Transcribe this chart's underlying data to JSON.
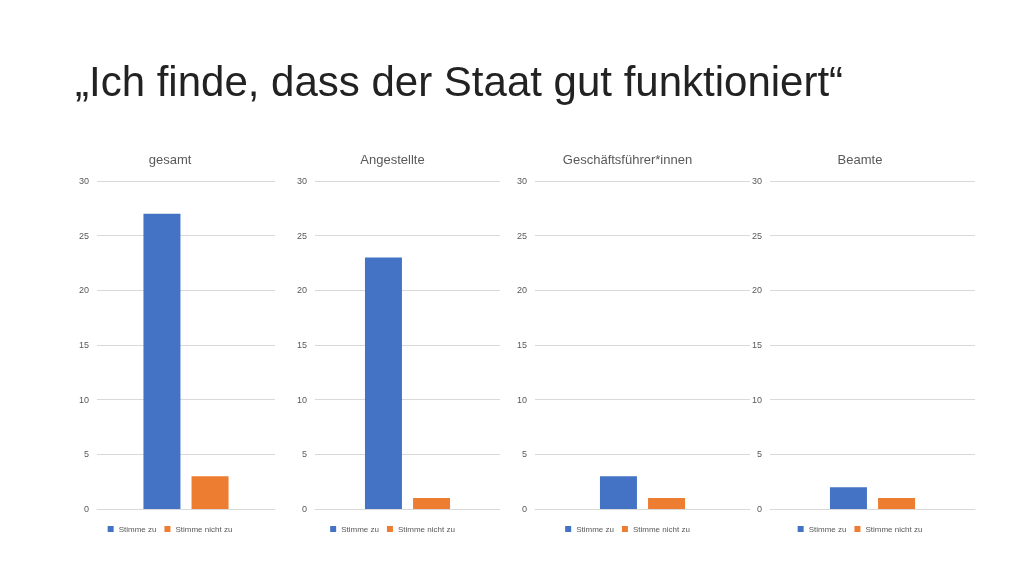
{
  "chart_data": [
    {
      "type": "other",
      "title": "„Ich finde, dass der Staat gut funktioniert“"
    },
    {
      "type": "bar",
      "title": "gesamt",
      "categories": [
        null
      ],
      "series": [
        {
          "name": "Stimme zu",
          "color": "#4472c4",
          "values": [
            27
          ]
        },
        {
          "name": "Stimme nicht zu",
          "color": "#ed7d31",
          "values": [
            3
          ]
        }
      ],
      "ylim": [
        0,
        30
      ],
      "yticks": [
        0,
        5,
        10,
        15,
        20,
        25,
        30
      ],
      "grid": "y",
      "legend": "bottom"
    },
    {
      "type": "bar",
      "title": "Angestellte",
      "categories": [
        null
      ],
      "series": [
        {
          "name": "Stimme zu",
          "color": "#4472c4",
          "values": [
            23
          ]
        },
        {
          "name": "Stimme nicht zu",
          "color": "#ed7d31",
          "values": [
            1
          ]
        }
      ],
      "ylim": [
        0,
        30
      ],
      "yticks": [
        0,
        5,
        10,
        15,
        20,
        25,
        30
      ],
      "grid": "y",
      "legend": "bottom"
    },
    {
      "type": "bar",
      "title": "Geschäftsführer*innen",
      "categories": [
        null
      ],
      "series": [
        {
          "name": "Stimme zu",
          "color": "#4472c4",
          "values": [
            3
          ]
        },
        {
          "name": "Stimme nicht zu",
          "color": "#ed7d31",
          "values": [
            1
          ]
        }
      ],
      "ylim": [
        0,
        30
      ],
      "yticks": [
        0,
        5,
        10,
        15,
        20,
        25,
        30
      ],
      "grid": "y",
      "legend": "bottom"
    },
    {
      "type": "bar",
      "title": "Beamte",
      "categories": [
        null
      ],
      "series": [
        {
          "name": "Stimme zu",
          "color": "#4472c4",
          "values": [
            2
          ]
        },
        {
          "name": "Stimme nicht zu",
          "color": "#ed7d31",
          "values": [
            1
          ]
        }
      ],
      "ylim": [
        0,
        30
      ],
      "yticks": [
        0,
        5,
        10,
        15,
        20,
        25,
        30
      ],
      "grid": "y",
      "legend": "bottom"
    }
  ]
}
